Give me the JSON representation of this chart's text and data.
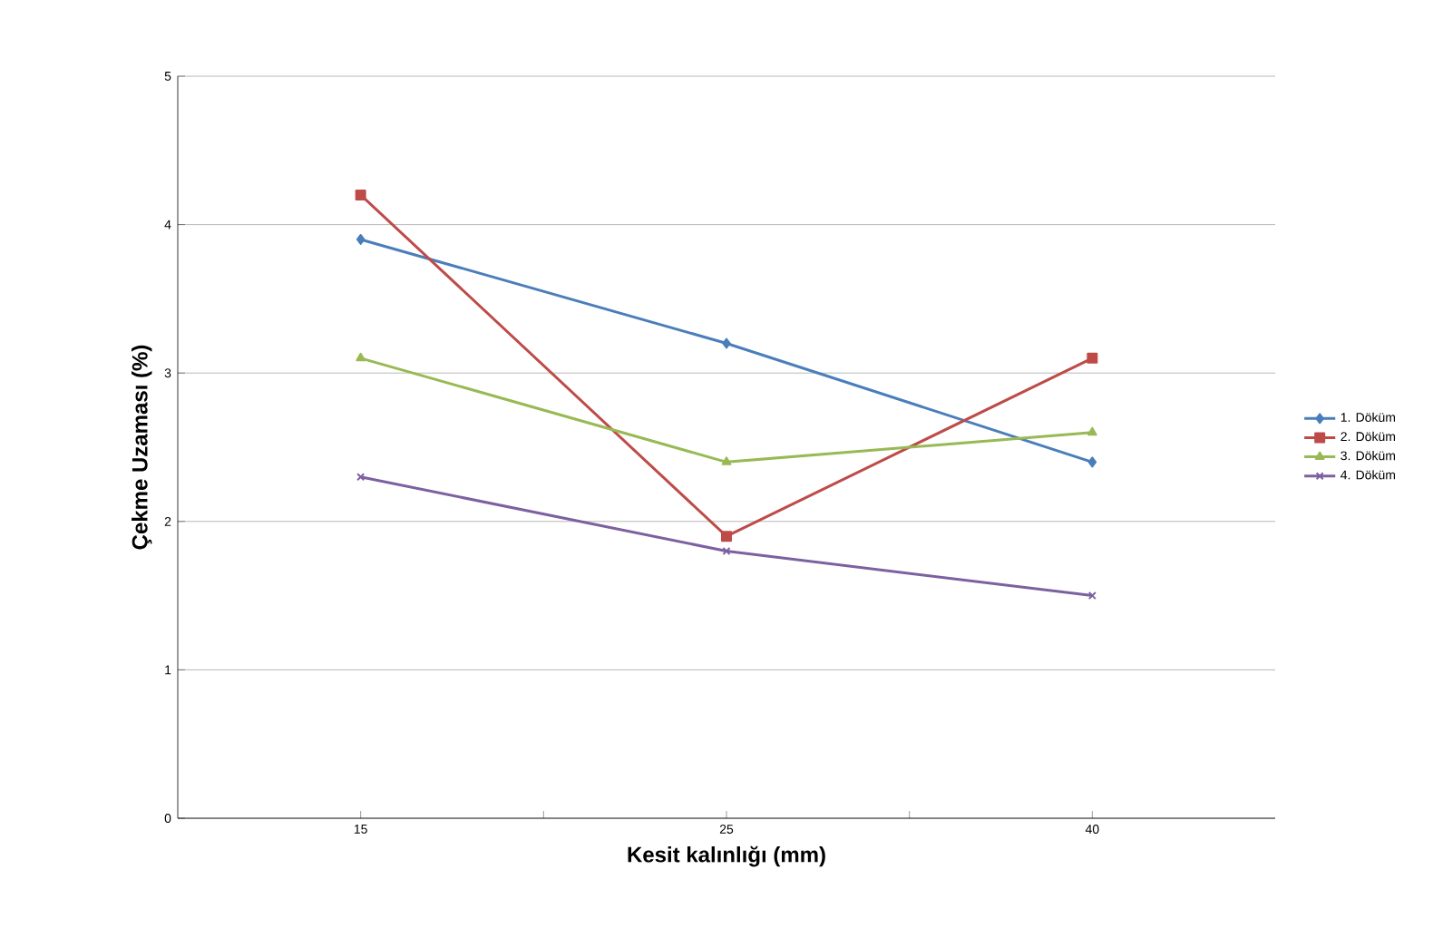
{
  "chart_data": {
    "type": "line",
    "xlabel": "Kesit kalınlığı (mm)",
    "ylabel": "Çekme Uzaması (%)",
    "categories": [
      "15",
      "25",
      "40"
    ],
    "series": [
      {
        "name": "1. Döküm",
        "color": "#4a7ebb",
        "marker": "diamond",
        "values": [
          3.9,
          3.2,
          2.4
        ]
      },
      {
        "name": "2. Döküm",
        "color": "#be4b48",
        "marker": "square",
        "values": [
          4.2,
          1.9,
          3.1
        ]
      },
      {
        "name": "3. Döküm",
        "color": "#98b954",
        "marker": "triangle",
        "values": [
          3.1,
          2.4,
          2.6
        ]
      },
      {
        "name": "4. Döküm",
        "color": "#7d60a0",
        "marker": "cross",
        "values": [
          2.3,
          1.8,
          1.5
        ]
      }
    ],
    "ylim": [
      0,
      5
    ],
    "yticks": [
      0,
      1,
      2,
      3,
      4,
      5
    ],
    "grid": "y",
    "legend": "right",
    "line_style": "solid"
  }
}
